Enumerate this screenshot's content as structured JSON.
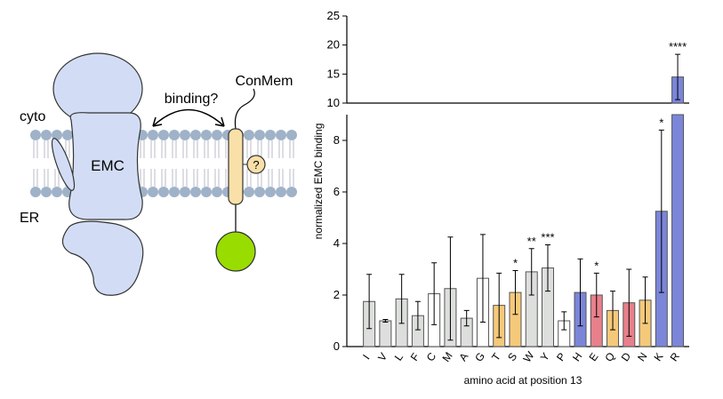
{
  "diagram": {
    "labels": {
      "cyto": "cyto",
      "er": "ER",
      "emc": "EMC",
      "binding": "binding?",
      "conmem": "ConMem",
      "query": "?"
    }
  },
  "chart_data": {
    "type": "bar",
    "categories": [
      "I",
      "V",
      "L",
      "F",
      "C",
      "M",
      "A",
      "G",
      "T",
      "S",
      "W",
      "Y",
      "P",
      "H",
      "E",
      "Q",
      "D",
      "N",
      "K",
      "R"
    ],
    "values": [
      1.75,
      1.0,
      1.85,
      1.2,
      2.05,
      2.25,
      1.1,
      2.65,
      1.6,
      2.1,
      2.9,
      3.05,
      1.0,
      2.1,
      2.0,
      1.4,
      1.7,
      1.8,
      5.25,
      14.5
    ],
    "errors": [
      1.05,
      0.05,
      0.95,
      0.55,
      1.2,
      2.0,
      0.3,
      1.7,
      1.25,
      0.85,
      0.9,
      0.9,
      0.35,
      1.3,
      0.85,
      0.75,
      1.3,
      0.9,
      3.15,
      3.9
    ],
    "colors": [
      "#dcdfdc",
      "#dcdfdc",
      "#dcdfdc",
      "#dcdfdc",
      "#ffffff",
      "#dcdfdc",
      "#dcdfdc",
      "#ffffff",
      "#f5c97a",
      "#f5c97a",
      "#dcdfdc",
      "#dcdfdc",
      "#ffffff",
      "#7b86d9",
      "#e8808c",
      "#f5c97a",
      "#e8808c",
      "#f5c97a",
      "#7b86d9",
      "#7b86d9"
    ],
    "significance": [
      null,
      null,
      null,
      null,
      null,
      null,
      null,
      null,
      null,
      "*",
      "**",
      "***",
      null,
      null,
      "*",
      null,
      null,
      null,
      "*",
      "****"
    ],
    "ylim": [
      0,
      25
    ],
    "ybreak": [
      9,
      10
    ],
    "yticks": [
      0,
      2,
      4,
      6,
      8,
      10,
      15,
      20,
      25
    ],
    "ylabel": "normalized EMC binding",
    "xlabel": "amino acid at position 13"
  }
}
